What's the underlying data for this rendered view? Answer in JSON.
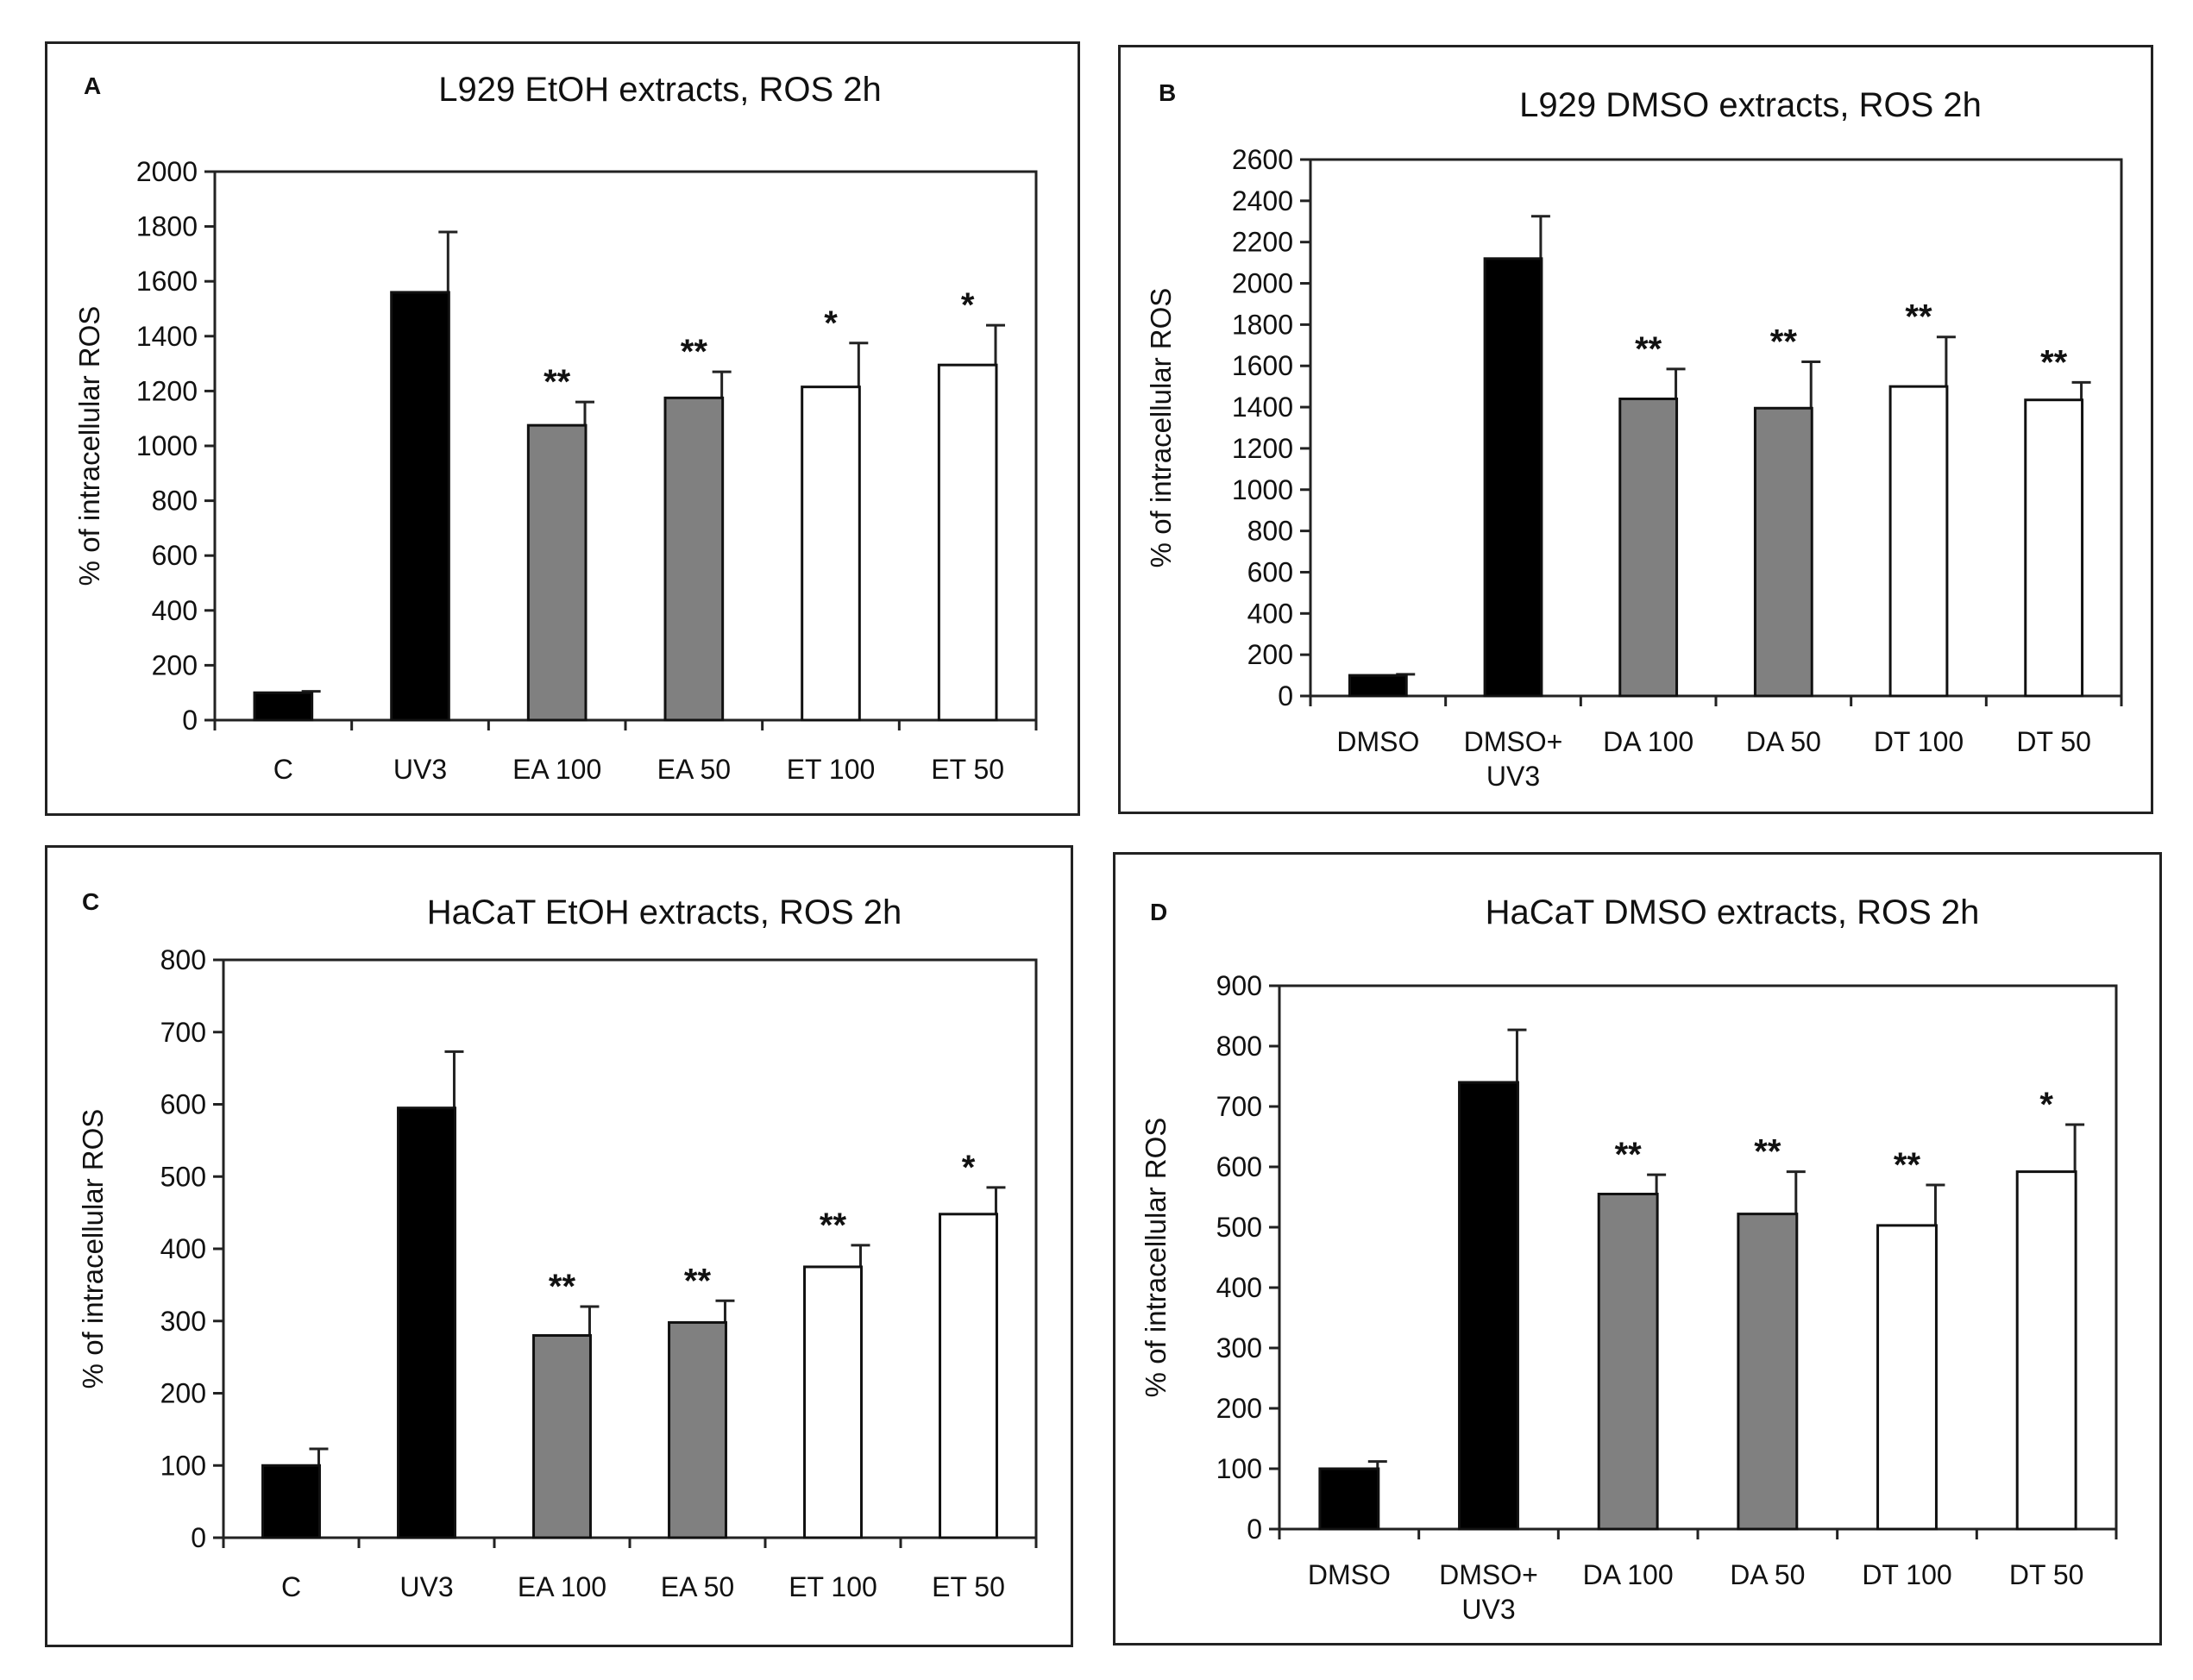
{
  "chart_data": [
    {
      "panel": "A",
      "type": "bar",
      "title": "L929 EtOH extracts, ROS 2h",
      "ylabel": "% of intracellular ROS",
      "xlabel": "",
      "ylim": [
        0,
        2000
      ],
      "ystep": 200,
      "categories": [
        [
          "C"
        ],
        [
          "UV3"
        ],
        [
          "EA 100"
        ],
        [
          "EA 50"
        ],
        [
          "ET 100"
        ],
        [
          "ET 50"
        ]
      ],
      "values": [
        100,
        1560,
        1075,
        1175,
        1215,
        1295
      ],
      "errors": [
        5,
        220,
        85,
        95,
        160,
        145
      ],
      "significance": [
        "",
        "",
        "**",
        "**",
        "*",
        "*"
      ],
      "fills": [
        "#000000",
        "#000000",
        "#808080",
        "#808080",
        "#ffffff",
        "#ffffff"
      ]
    },
    {
      "panel": "B",
      "type": "bar",
      "title": "L929 DMSO extracts, ROS 2h",
      "ylabel": "% of intracellular ROS",
      "xlabel": "",
      "ylim": [
        0,
        2600
      ],
      "ystep": 200,
      "categories": [
        [
          "DMSO"
        ],
        [
          "DMSO+",
          "UV3"
        ],
        [
          "DA 100"
        ],
        [
          "DA 50"
        ],
        [
          "DT 100"
        ],
        [
          "DT 50"
        ]
      ],
      "values": [
        100,
        2120,
        1440,
        1395,
        1500,
        1435
      ],
      "errors": [
        5,
        205,
        145,
        225,
        240,
        85
      ],
      "significance": [
        "",
        "",
        "**",
        "**",
        "**",
        "**"
      ],
      "fills": [
        "#000000",
        "#000000",
        "#808080",
        "#808080",
        "#ffffff",
        "#ffffff"
      ]
    },
    {
      "panel": "C",
      "type": "bar",
      "title": "HaCaT EtOH extracts, ROS 2h",
      "ylabel": "% of intracellular ROS",
      "xlabel": "",
      "ylim": [
        0,
        800
      ],
      "ystep": 100,
      "categories": [
        [
          "C"
        ],
        [
          "UV3"
        ],
        [
          "EA 100"
        ],
        [
          "EA 50"
        ],
        [
          "ET 100"
        ],
        [
          "ET 50"
        ]
      ],
      "values": [
        100,
        595,
        280,
        298,
        375,
        448
      ],
      "errors": [
        23,
        78,
        40,
        30,
        30,
        37
      ],
      "significance": [
        "",
        "",
        "**",
        "**",
        "**",
        "*"
      ],
      "fills": [
        "#000000",
        "#000000",
        "#808080",
        "#808080",
        "#ffffff",
        "#ffffff"
      ]
    },
    {
      "panel": "D",
      "type": "bar",
      "title": "HaCaT DMSO extracts, ROS 2h",
      "ylabel": "% of intracellular ROS",
      "xlabel": "",
      "ylim": [
        0,
        900
      ],
      "ystep": 100,
      "categories": [
        [
          "DMSO"
        ],
        [
          "DMSO+",
          "UV3"
        ],
        [
          "DA 100"
        ],
        [
          "DA 50"
        ],
        [
          "DT 100"
        ],
        [
          "DT 50"
        ]
      ],
      "values": [
        100,
        740,
        555,
        522,
        503,
        592
      ],
      "errors": [
        12,
        87,
        32,
        70,
        67,
        78
      ],
      "significance": [
        "",
        "",
        "**",
        "**",
        "**",
        "*"
      ],
      "fills": [
        "#000000",
        "#000000",
        "#808080",
        "#808080",
        "#ffffff",
        "#ffffff"
      ]
    }
  ]
}
